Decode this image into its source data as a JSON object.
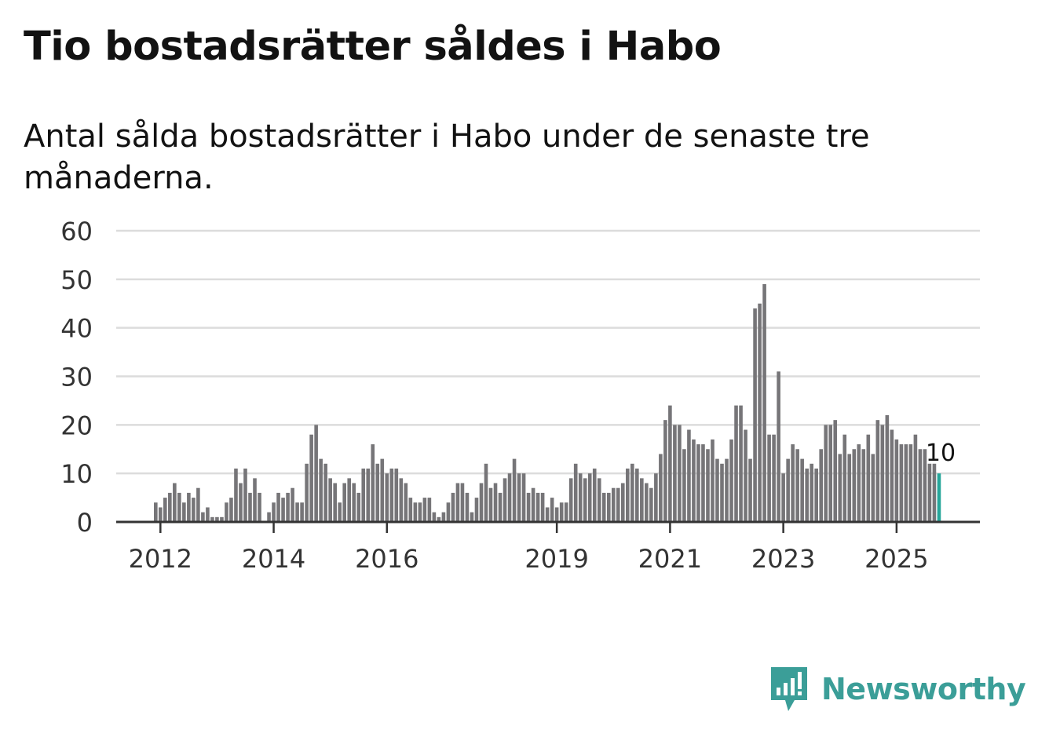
{
  "header": {
    "title": "Tio bostadsrätter såldes i Habo",
    "subtitle": "Antal sålda bostadsrätter i Habo under de senaste tre månaderna."
  },
  "brand": {
    "name": "Newsworthy",
    "color": "#3b9e98",
    "icon": "newsworthy-logo-icon"
  },
  "chart_data": {
    "type": "bar",
    "title": "Tio bostadsrätter såldes i Habo",
    "subtitle": "Antal sålda bostadsrätter i Habo under de senaste tre månaderna.",
    "xlabel": "",
    "ylabel": "",
    "ylim": [
      0,
      60
    ],
    "yticks": [
      0,
      10,
      20,
      30,
      40,
      50,
      60
    ],
    "xticks": [
      {
        "label": "2012",
        "index": 1
      },
      {
        "label": "2014",
        "index": 25
      },
      {
        "label": "2016",
        "index": 49
      },
      {
        "label": "2019",
        "index": 85
      },
      {
        "label": "2021",
        "index": 109
      },
      {
        "label": "2023",
        "index": 133
      },
      {
        "label": "2025",
        "index": 157
      }
    ],
    "grid": true,
    "bar_color": "#767578",
    "highlight_color": "#26a69a",
    "highlight_label": "10",
    "series": [
      {
        "name": "Antal sålda bostadsrätter",
        "values": [
          4,
          3,
          5,
          6,
          8,
          6,
          4,
          6,
          5,
          7,
          2,
          3,
          1,
          1,
          1,
          4,
          5,
          11,
          8,
          11,
          6,
          9,
          6,
          0,
          2,
          4,
          6,
          5,
          6,
          7,
          4,
          4,
          12,
          18,
          20,
          13,
          12,
          9,
          8,
          4,
          8,
          9,
          8,
          6,
          11,
          11,
          16,
          12,
          13,
          10,
          11,
          11,
          9,
          8,
          5,
          4,
          4,
          5,
          5,
          2,
          1,
          2,
          4,
          6,
          8,
          8,
          6,
          2,
          5,
          8,
          12,
          7,
          8,
          6,
          9,
          10,
          13,
          10,
          10,
          6,
          7,
          6,
          6,
          3,
          5,
          3,
          4,
          4,
          9,
          12,
          10,
          9,
          10,
          11,
          9,
          6,
          6,
          7,
          7,
          8,
          11,
          12,
          11,
          9,
          8,
          7,
          10,
          14,
          21,
          24,
          20,
          20,
          15,
          19,
          17,
          16,
          16,
          15,
          17,
          13,
          12,
          13,
          17,
          24,
          24,
          19,
          13,
          44,
          45,
          49,
          18,
          18,
          31,
          10,
          13,
          16,
          15,
          13,
          11,
          12,
          11,
          15,
          20,
          20,
          21,
          14,
          18,
          14,
          15,
          16,
          15,
          18,
          14,
          21,
          20,
          22,
          19,
          17,
          16,
          16,
          16,
          18,
          15,
          15,
          12,
          12,
          10
        ]
      }
    ]
  }
}
